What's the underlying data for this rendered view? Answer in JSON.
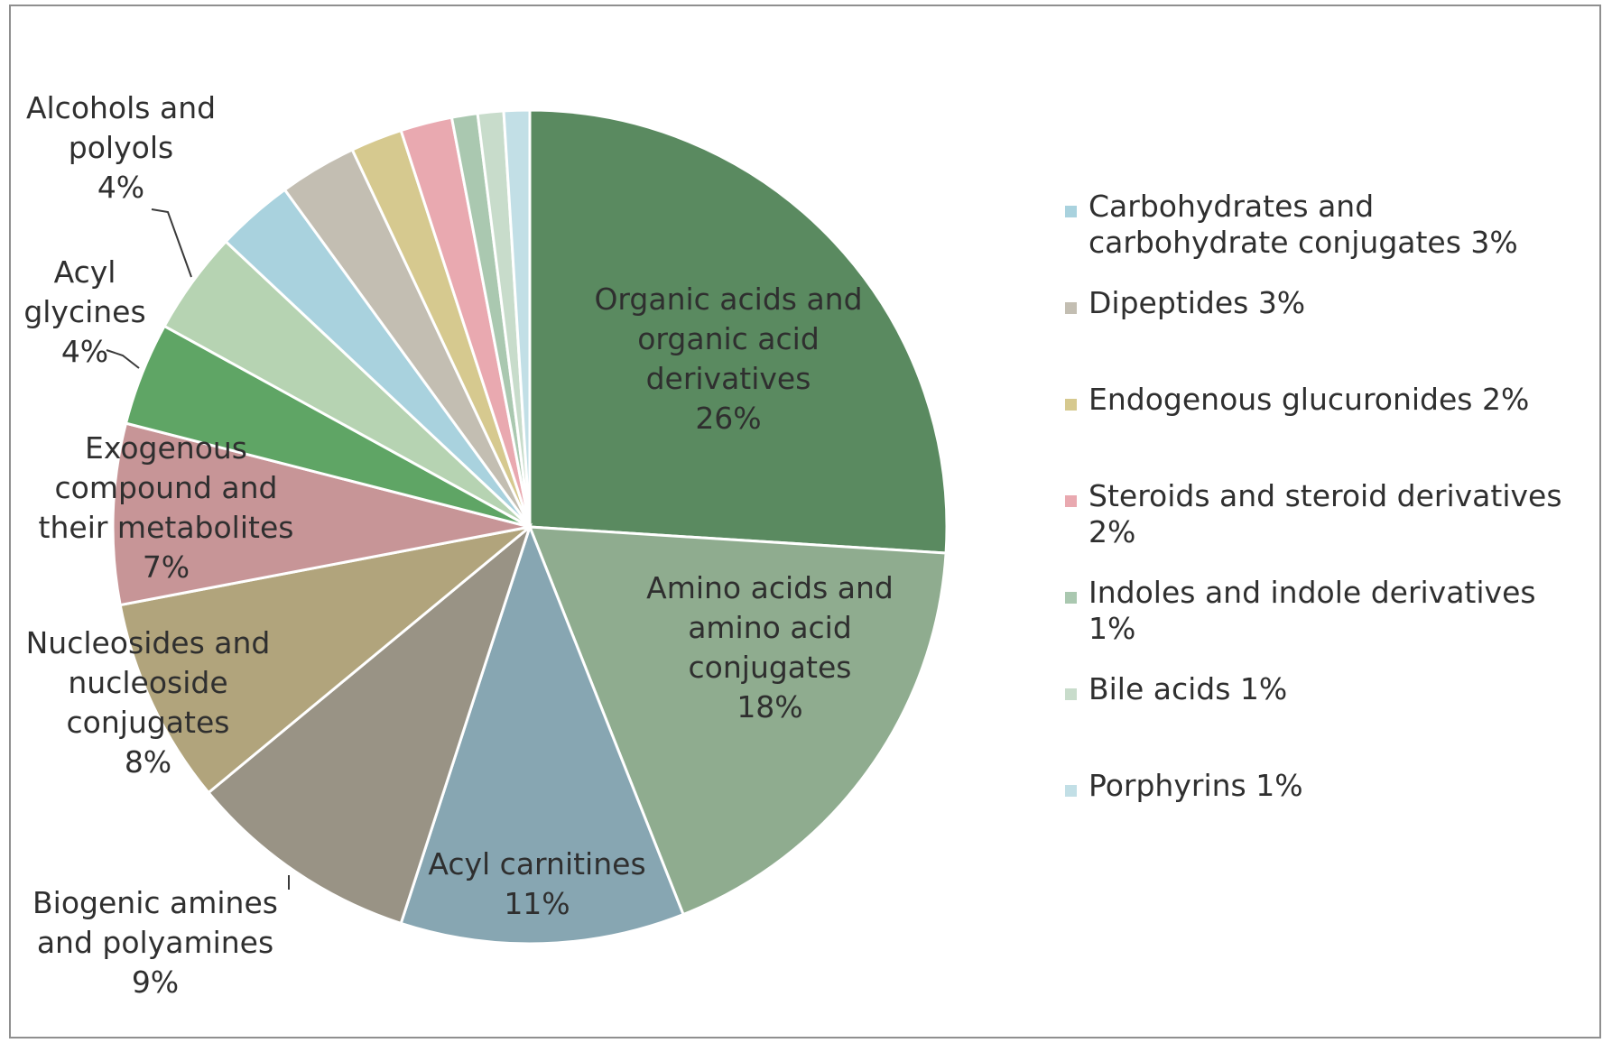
{
  "chart_data": {
    "type": "pie",
    "slices": [
      {
        "label": "Organic acids and organic acid derivatives",
        "value": 26,
        "value_label": "26%",
        "color": "#5a8a60"
      },
      {
        "label": "Amino acids and amino acid conjugates",
        "value": 18,
        "value_label": "18%",
        "color": "#8fac8f"
      },
      {
        "label": "Acyl carnitines",
        "value": 11,
        "value_label": "11%",
        "color": "#87a6b2"
      },
      {
        "label": "Biogenic amines and polyamines",
        "value": 9,
        "value_label": "9%",
        "color": "#999385"
      },
      {
        "label": "Nucleosides and nucleoside conjugates",
        "value": 8,
        "value_label": "8%",
        "color": "#b1a47c"
      },
      {
        "label": "Exogenous compound and their metabolites",
        "value": 7,
        "value_label": "7%",
        "color": "#c79597"
      },
      {
        "label": "Acyl glycines",
        "value": 4,
        "value_label": "4%",
        "color": "#5fa565"
      },
      {
        "label": "Alcohols and polyols",
        "value": 4,
        "value_label": "4%",
        "color": "#b6d3b2"
      },
      {
        "label": "Carbohydrates and carbohydrate conjugates",
        "value": 3,
        "value_label": "3%",
        "color": "#a9d2de"
      },
      {
        "label": "Dipeptides",
        "value": 3,
        "value_label": "3%",
        "color": "#c3beb2"
      },
      {
        "label": "Endogenous glucuronides",
        "value": 2,
        "value_label": "2%",
        "color": "#d6c98f"
      },
      {
        "label": "Steroids and steroid derivatives",
        "value": 2,
        "value_label": "2%",
        "color": "#e9a9b0"
      },
      {
        "label": "Indoles and indole derivatives",
        "value": 1,
        "value_label": "1%",
        "color": "#aac8b0"
      },
      {
        "label": "Bile acids",
        "value": 1,
        "value_label": "1%",
        "color": "#c8dccb"
      },
      {
        "label": "Porphyrins",
        "value": 1,
        "value_label": "1%",
        "color": "#c2dfe6"
      }
    ],
    "data_labels": [
      {
        "slice": 0,
        "lines": [
          "Organic acids and",
          "organic acid",
          "derivatives",
          "26%"
        ]
      },
      {
        "slice": 1,
        "lines": [
          "Amino acids and",
          "amino acid",
          "conjugates",
          "18%"
        ]
      },
      {
        "slice": 2,
        "lines": [
          "Acyl carnitines",
          "11%"
        ]
      },
      {
        "slice": 3,
        "lines": [
          "Biogenic amines",
          "and polyamines",
          "9%"
        ]
      },
      {
        "slice": 4,
        "lines": [
          "Nucleosides and",
          "nucleoside",
          "conjugates",
          "8%"
        ]
      },
      {
        "slice": 5,
        "lines": [
          "Exogenous",
          "compound and",
          "their metabolites",
          "7%"
        ]
      },
      {
        "slice": 6,
        "lines": [
          "Acyl",
          "glycines",
          "4%"
        ]
      },
      {
        "slice": 7,
        "lines": [
          "Alcohols and",
          "polyols",
          "4%"
        ]
      }
    ],
    "legend": {
      "placement": "right",
      "entries": [
        {
          "slice": 8,
          "lines": [
            "Carbohydrates and",
            "carbohydrate conjugates 3%"
          ]
        },
        {
          "slice": 9,
          "lines": [
            "Dipeptides 3%"
          ]
        },
        {
          "slice": 10,
          "lines": [
            "Endogenous glucuronides 2%"
          ]
        },
        {
          "slice": 11,
          "lines": [
            "Steroids and steroid derivatives",
            "2%"
          ]
        },
        {
          "slice": 12,
          "lines": [
            "Indoles and indole derivatives",
            "1%"
          ]
        },
        {
          "slice": 13,
          "lines": [
            "Bile acids 1%"
          ]
        },
        {
          "slice": 14,
          "lines": [
            "Porphyrins 1%"
          ]
        }
      ]
    }
  }
}
